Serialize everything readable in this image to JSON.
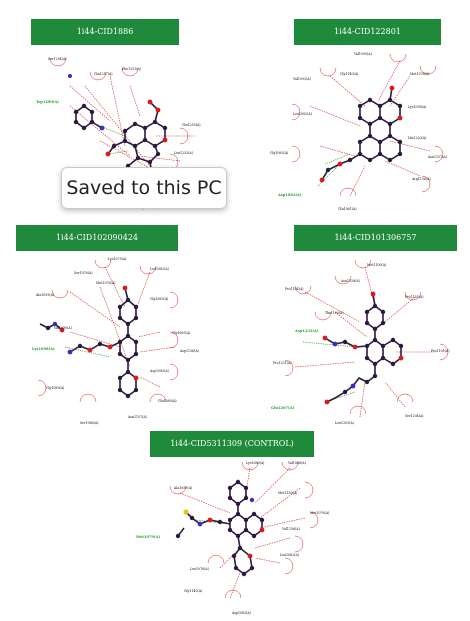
{
  "panels": [
    {
      "title": "1i44-CID1886",
      "hbond_residue": "Trp1290(A)",
      "residues": [
        "Ser1294(A)",
        "Phe1251(A)",
        "Gln1257(A)",
        "Gln1255(A)",
        "Leu1253(A)",
        "Tyr1187(A)"
      ]
    },
    {
      "title": "1i44-CID122801",
      "hbond_residue": "Asp1083(A)",
      "residues": [
        "Val1090(A)",
        "Gly1140(A)",
        "Met1076(A)",
        "Val1092(A)",
        "Lys1098(A)",
        "Leu1082(A)",
        "His1220(A)",
        "Asn1157(A)",
        "Arg1136(A)",
        "Glu1061(A)",
        "Gly1085(A)"
      ]
    },
    {
      "title": "1i44-CID102090424",
      "hbond_residue": "Lys1098(A)",
      "residues": [
        "Lys1075(A)",
        "Leu1082(A)",
        "Ala1059(A)",
        "Ser1076(A)",
        "Met1076(A)",
        "Gly1085(A)",
        "Val1090(A)",
        "Gly1085(A)",
        "Asp1136(A)",
        "Gly1089(A)",
        "Asp1083(A)",
        "Glu1080(A)",
        "Ser1086(A)",
        "Asn1157(A)"
      ]
    },
    {
      "title": "1i44-CID101306757",
      "hbond_residues": [
        "Asp1232(A)",
        "Glu1207(A)"
      ],
      "residues": [
        "Met1100(A)",
        "Asn1158(A)",
        "Pro1104(A)",
        "Pro1155(A)",
        "Thr1100(A)",
        "Pro1105(A)",
        "Pro1231(A)",
        "Leu1205(A)",
        "Ser1204(A)"
      ]
    },
    {
      "title": "1i44-CID5311309 (CONTROL)",
      "hbond_residue": "Met1079(A)",
      "residues": [
        "Lys1080(A)",
        "Val1088(A)",
        "Ala1059(A)",
        "Met1150(A)",
        "Met1076(A)",
        "Val1156(A)",
        "Leu1082(A)",
        "Leu1076(A)",
        "Gly1140(A)",
        "Asp1083(A)"
      ]
    }
  ],
  "toast": {
    "text": "Saved to this PC"
  }
}
